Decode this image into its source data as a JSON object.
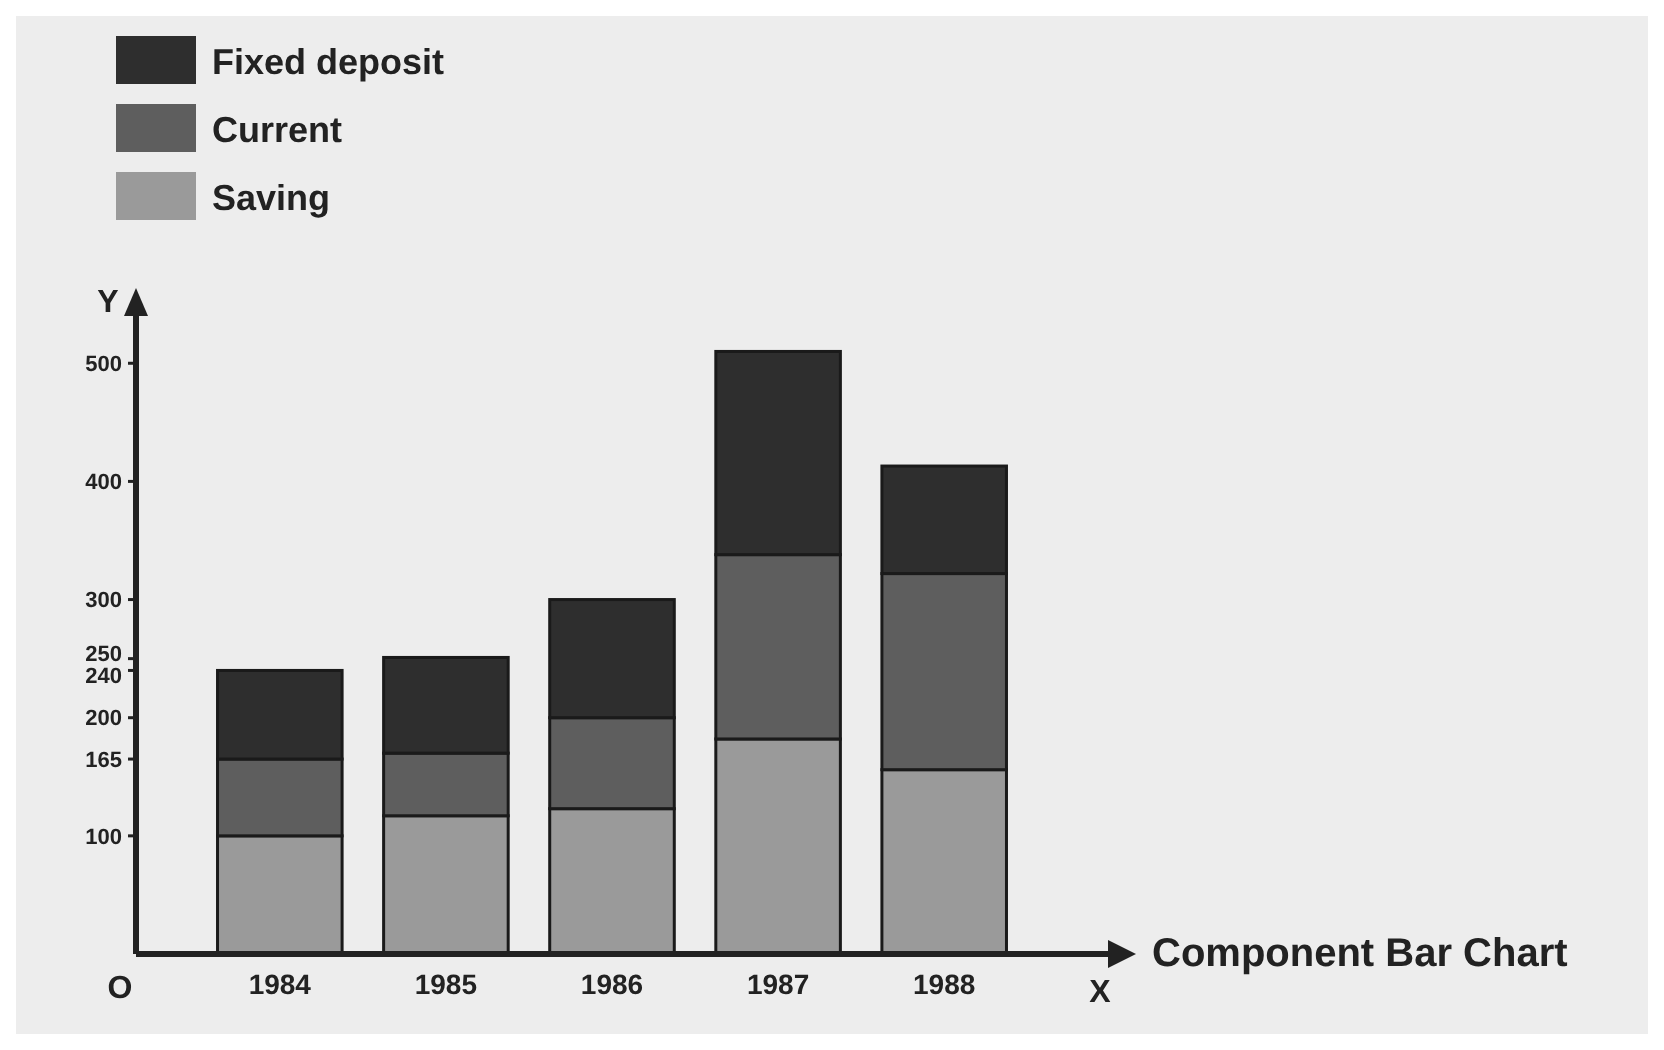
{
  "chart_data": {
    "type": "bar",
    "title": "Component Bar Chart",
    "xlabel": "X",
    "ylabel": "Y",
    "annotations": [
      "O"
    ],
    "categories": [
      "1984",
      "1985",
      "1986",
      "1987",
      "1988"
    ],
    "stacked": true,
    "series": [
      {
        "name": "Saving",
        "color": "#9a9a9a",
        "values": [
          100,
          117,
          123,
          182,
          156
        ]
      },
      {
        "name": "Current",
        "color": "#5e5e5e",
        "values": [
          65,
          53,
          77,
          156,
          166
        ]
      },
      {
        "name": "Fixed deposit",
        "color": "#2e2e2e",
        "values": [
          75,
          81,
          100,
          172,
          91
        ]
      }
    ],
    "ylim": [
      0,
      540
    ],
    "yticks": [
      100,
      165,
      200,
      240,
      250,
      300,
      400,
      500
    ],
    "legend": "top left"
  }
}
